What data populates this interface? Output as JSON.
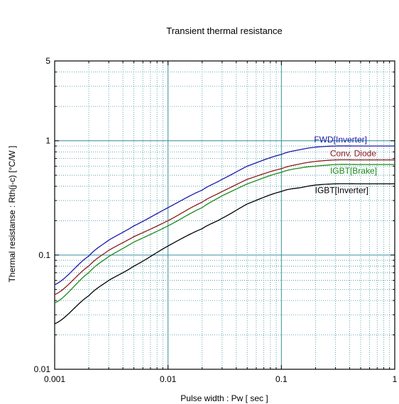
{
  "chart_data": {
    "type": "line",
    "title": "Transient thermal resistance",
    "xlabel": "Pulse width  :  Pw  [ sec ]",
    "ylabel": "Thermal resistanse  :  Rth(j-c)  [°C/W ]",
    "xscale": "log",
    "yscale": "log",
    "xlim": [
      0.001,
      1
    ],
    "ylim": [
      0.01,
      5
    ],
    "grid": true,
    "x_ticks": [
      "0.001",
      "0.01",
      "0.1",
      "1"
    ],
    "y_ticks": [
      "0.01",
      "0.1",
      "1",
      "5"
    ],
    "series": [
      {
        "name": "FWD[Inverter]",
        "color": "#1a1aa8",
        "x": [
          0.001,
          0.002,
          0.003,
          0.005,
          0.01,
          0.02,
          0.03,
          0.05,
          0.1,
          0.15,
          0.2,
          0.3,
          0.5,
          1
        ],
        "y": [
          0.055,
          0.098,
          0.135,
          0.18,
          0.26,
          0.37,
          0.46,
          0.6,
          0.76,
          0.84,
          0.88,
          0.9,
          0.9,
          0.9
        ]
      },
      {
        "name": "Conv. Diode",
        "color": "#8b1a1a",
        "x": [
          0.001,
          0.002,
          0.003,
          0.005,
          0.01,
          0.02,
          0.03,
          0.05,
          0.1,
          0.15,
          0.2,
          0.3,
          0.5,
          1
        ],
        "y": [
          0.045,
          0.08,
          0.11,
          0.145,
          0.2,
          0.29,
          0.36,
          0.46,
          0.57,
          0.63,
          0.66,
          0.68,
          0.68,
          0.68
        ]
      },
      {
        "name": "IGBT[Brake]",
        "color": "#1a8a1a",
        "x": [
          0.001,
          0.002,
          0.003,
          0.005,
          0.01,
          0.02,
          0.03,
          0.05,
          0.1,
          0.15,
          0.2,
          0.3,
          0.5,
          1
        ],
        "y": [
          0.038,
          0.07,
          0.097,
          0.13,
          0.18,
          0.26,
          0.33,
          0.42,
          0.53,
          0.58,
          0.6,
          0.62,
          0.62,
          0.62
        ]
      },
      {
        "name": "IGBT[Inverter]",
        "color": "#000000",
        "x": [
          0.001,
          0.002,
          0.003,
          0.005,
          0.01,
          0.02,
          0.03,
          0.05,
          0.1,
          0.15,
          0.2,
          0.3,
          0.5,
          1
        ],
        "y": [
          0.025,
          0.044,
          0.06,
          0.08,
          0.12,
          0.17,
          0.21,
          0.28,
          0.36,
          0.39,
          0.41,
          0.42,
          0.42,
          0.42
        ]
      }
    ]
  }
}
